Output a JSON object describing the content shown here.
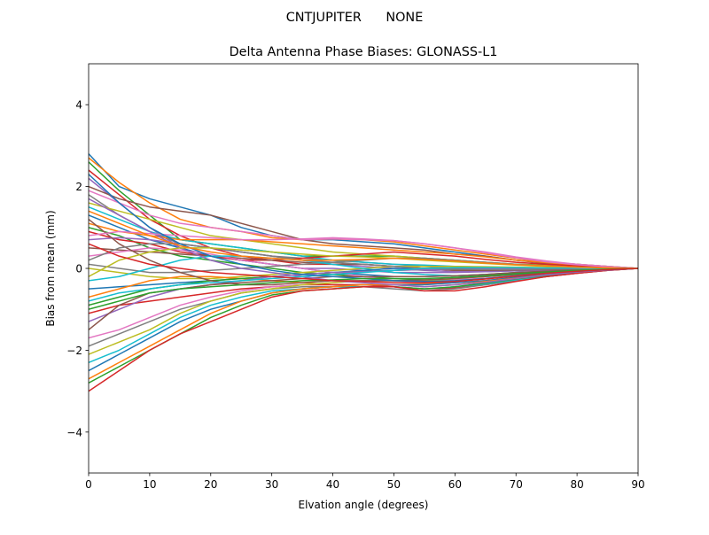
{
  "figure": {
    "suptitle": "CNTJUPITER      NONE"
  },
  "chart_data": {
    "type": "line",
    "title": "Delta Antenna Phase Biases: GLONASS-L1",
    "xlabel": "Elvation angle (degrees)",
    "ylabel": "Bias from mean (mm)",
    "xlim": [
      0,
      90
    ],
    "ylim": [
      -5,
      5
    ],
    "xticks": [
      0,
      10,
      20,
      30,
      40,
      50,
      60,
      70,
      80,
      90
    ],
    "yticks": [
      -4,
      -2,
      0,
      2,
      4
    ],
    "ytick_labels": [
      "−4",
      "−2",
      "0",
      "2",
      "4"
    ],
    "grid": false,
    "legend": "none",
    "x": [
      0,
      5,
      10,
      15,
      20,
      25,
      30,
      35,
      40,
      45,
      50,
      55,
      60,
      65,
      70,
      75,
      80,
      85,
      90
    ],
    "palette": [
      "#1f77b4",
      "#ff7f0e",
      "#2ca02c",
      "#d62728",
      "#9467bd",
      "#8c564b",
      "#e377c2",
      "#7f7f7f",
      "#bcbd22",
      "#17becf"
    ],
    "series": [
      {
        "values": [
          2.8,
          2.0,
          1.7,
          1.5,
          1.3,
          1.0,
          0.8,
          0.7,
          0.7,
          0.65,
          0.6,
          0.5,
          0.4,
          0.3,
          0.2,
          0.15,
          0.1,
          0.05,
          0.0
        ]
      },
      {
        "values": [
          2.7,
          2.1,
          1.6,
          1.2,
          1.0,
          0.9,
          0.75,
          0.7,
          0.72,
          0.7,
          0.65,
          0.55,
          0.45,
          0.35,
          0.25,
          0.15,
          0.1,
          0.05,
          0.0
        ]
      },
      {
        "values": [
          2.6,
          1.9,
          1.3,
          0.7,
          0.6,
          0.5,
          0.4,
          0.3,
          0.3,
          0.3,
          0.3,
          0.25,
          0.2,
          0.15,
          0.1,
          0.08,
          0.05,
          0.02,
          0.0
        ]
      },
      {
        "values": [
          2.4,
          1.8,
          1.2,
          0.8,
          0.5,
          0.3,
          0.2,
          0.1,
          0.1,
          0.1,
          0.05,
          0.0,
          -0.05,
          -0.05,
          -0.05,
          -0.03,
          -0.02,
          -0.01,
          0.0
        ]
      },
      {
        "values": [
          2.2,
          1.6,
          1.0,
          0.5,
          0.3,
          0.2,
          0.1,
          0.0,
          0.0,
          -0.05,
          -0.1,
          -0.1,
          -0.1,
          -0.08,
          -0.06,
          -0.04,
          -0.02,
          -0.01,
          0.0
        ]
      },
      {
        "values": [
          2.0,
          1.7,
          1.5,
          1.4,
          1.3,
          1.1,
          0.9,
          0.7,
          0.6,
          0.55,
          0.5,
          0.45,
          0.35,
          0.3,
          0.2,
          0.12,
          0.08,
          0.04,
          0.0
        ]
      },
      {
        "values": [
          1.9,
          1.6,
          1.3,
          1.1,
          1.0,
          0.9,
          0.8,
          0.7,
          0.72,
          0.7,
          0.68,
          0.6,
          0.5,
          0.4,
          0.28,
          0.18,
          0.1,
          0.05,
          0.0
        ]
      },
      {
        "values": [
          1.8,
          1.3,
          0.9,
          0.6,
          0.5,
          0.4,
          0.3,
          0.25,
          0.2,
          0.15,
          0.1,
          0.05,
          0.0,
          -0.02,
          -0.03,
          -0.02,
          -0.01,
          0.0,
          0.0
        ]
      },
      {
        "values": [
          1.6,
          1.4,
          1.2,
          1.0,
          0.8,
          0.7,
          0.6,
          0.5,
          0.4,
          0.35,
          0.3,
          0.25,
          0.2,
          0.15,
          0.1,
          0.07,
          0.05,
          0.02,
          0.0
        ]
      },
      {
        "values": [
          1.5,
          1.2,
          0.9,
          0.7,
          0.6,
          0.5,
          0.4,
          0.3,
          0.2,
          0.15,
          0.1,
          0.08,
          0.05,
          0.03,
          0.02,
          0.01,
          0.0,
          0.0,
          0.0
        ]
      },
      {
        "values": [
          1.3,
          1.0,
          0.7,
          0.5,
          0.3,
          0.2,
          0.1,
          0.0,
          -0.1,
          -0.15,
          -0.2,
          -0.2,
          -0.18,
          -0.15,
          -0.1,
          -0.07,
          -0.04,
          -0.02,
          0.0
        ]
      },
      {
        "values": [
          1.1,
          0.9,
          0.8,
          0.7,
          0.7,
          0.7,
          0.65,
          0.6,
          0.55,
          0.5,
          0.45,
          0.4,
          0.35,
          0.28,
          0.2,
          0.14,
          0.08,
          0.04,
          0.0
        ]
      },
      {
        "values": [
          1.0,
          0.8,
          0.5,
          0.3,
          0.2,
          0.1,
          0.0,
          -0.1,
          -0.15,
          -0.2,
          -0.25,
          -0.28,
          -0.28,
          -0.25,
          -0.18,
          -0.12,
          -0.07,
          -0.03,
          0.0
        ]
      },
      {
        "values": [
          0.9,
          0.7,
          0.6,
          0.4,
          0.3,
          0.2,
          0.2,
          0.25,
          0.3,
          0.35,
          0.4,
          0.35,
          0.3,
          0.22,
          0.15,
          0.1,
          0.06,
          0.03,
          0.0
        ]
      },
      {
        "values": [
          0.7,
          0.75,
          0.7,
          0.6,
          0.5,
          0.4,
          0.3,
          0.2,
          0.1,
          0.05,
          0.0,
          -0.05,
          -0.08,
          -0.08,
          -0.06,
          -0.04,
          -0.02,
          -0.01,
          0.0
        ]
      },
      {
        "values": [
          0.5,
          0.45,
          0.4,
          0.35,
          0.3,
          0.25,
          0.2,
          0.15,
          0.1,
          0.1,
          0.05,
          0.0,
          -0.05,
          -0.05,
          -0.04,
          -0.03,
          -0.02,
          -0.01,
          0.0
        ]
      },
      {
        "values": [
          0.3,
          0.4,
          0.5,
          0.45,
          0.35,
          0.2,
          0.1,
          0.0,
          -0.1,
          -0.2,
          -0.3,
          -0.35,
          -0.35,
          -0.3,
          -0.22,
          -0.14,
          -0.08,
          -0.03,
          0.0
        ]
      },
      {
        "values": [
          0.1,
          0.0,
          -0.1,
          -0.1,
          -0.05,
          0.0,
          0.05,
          0.1,
          0.15,
          0.2,
          0.25,
          0.25,
          0.2,
          0.15,
          0.1,
          0.06,
          0.03,
          0.01,
          0.0
        ]
      },
      {
        "values": [
          0.0,
          -0.1,
          -0.2,
          -0.25,
          -0.25,
          -0.2,
          -0.15,
          -0.1,
          -0.05,
          0.0,
          0.05,
          0.05,
          0.05,
          0.04,
          0.03,
          0.02,
          0.01,
          0.0,
          0.0
        ]
      },
      {
        "values": [
          -0.3,
          -0.2,
          0.0,
          0.2,
          0.3,
          0.3,
          0.25,
          0.2,
          0.1,
          0.0,
          -0.1,
          -0.15,
          -0.18,
          -0.15,
          -0.12,
          -0.08,
          -0.05,
          -0.02,
          0.0
        ]
      },
      {
        "values": [
          -0.5,
          -0.45,
          -0.4,
          -0.35,
          -0.3,
          -0.25,
          -0.2,
          -0.15,
          -0.1,
          -0.05,
          0.0,
          0.0,
          0.0,
          0.0,
          0.0,
          0.0,
          0.0,
          0.0,
          0.0
        ]
      },
      {
        "values": [
          -0.7,
          -0.5,
          -0.3,
          -0.2,
          -0.2,
          -0.25,
          -0.3,
          -0.35,
          -0.4,
          -0.4,
          -0.4,
          -0.38,
          -0.35,
          -0.3,
          -0.22,
          -0.14,
          -0.08,
          -0.03,
          0.0
        ]
      },
      {
        "values": [
          -0.9,
          -0.7,
          -0.5,
          -0.4,
          -0.3,
          -0.25,
          -0.2,
          -0.15,
          -0.1,
          -0.08,
          -0.05,
          -0.03,
          -0.02,
          -0.01,
          0.0,
          0.0,
          0.0,
          0.0,
          0.0
        ]
      },
      {
        "values": [
          -1.1,
          -0.9,
          -0.8,
          -0.7,
          -0.6,
          -0.5,
          -0.45,
          -0.4,
          -0.4,
          -0.4,
          -0.45,
          -0.5,
          -0.48,
          -0.4,
          -0.3,
          -0.2,
          -0.12,
          -0.05,
          0.0
        ]
      },
      {
        "values": [
          -1.3,
          -1.0,
          -0.7,
          -0.5,
          -0.4,
          -0.3,
          -0.2,
          -0.15,
          -0.1,
          -0.08,
          -0.05,
          -0.03,
          -0.02,
          -0.01,
          0.0,
          0.0,
          0.0,
          0.0,
          0.0
        ]
      },
      {
        "values": [
          -1.5,
          -0.9,
          -0.6,
          -0.5,
          -0.4,
          -0.35,
          -0.3,
          -0.25,
          -0.2,
          -0.2,
          -0.2,
          -0.2,
          -0.18,
          -0.15,
          -0.1,
          -0.07,
          -0.04,
          -0.02,
          0.0
        ]
      },
      {
        "values": [
          -1.7,
          -1.5,
          -1.2,
          -0.9,
          -0.7,
          -0.55,
          -0.45,
          -0.4,
          -0.35,
          -0.3,
          -0.3,
          -0.3,
          -0.28,
          -0.24,
          -0.18,
          -0.12,
          -0.07,
          -0.03,
          0.0
        ]
      },
      {
        "values": [
          -1.9,
          -1.6,
          -1.3,
          -1.0,
          -0.8,
          -0.6,
          -0.5,
          -0.45,
          -0.45,
          -0.45,
          -0.5,
          -0.55,
          -0.5,
          -0.4,
          -0.3,
          -0.2,
          -0.12,
          -0.05,
          0.0
        ]
      },
      {
        "values": [
          -2.1,
          -1.8,
          -1.5,
          -1.1,
          -0.8,
          -0.6,
          -0.5,
          -0.4,
          -0.35,
          -0.3,
          -0.3,
          -0.3,
          -0.25,
          -0.2,
          -0.15,
          -0.1,
          -0.06,
          -0.03,
          0.0
        ]
      },
      {
        "values": [
          -2.3,
          -2.0,
          -1.6,
          -1.2,
          -0.9,
          -0.7,
          -0.55,
          -0.5,
          -0.45,
          -0.45,
          -0.45,
          -0.5,
          -0.45,
          -0.38,
          -0.28,
          -0.18,
          -0.1,
          -0.04,
          0.0
        ]
      },
      {
        "values": [
          -2.5,
          -2.1,
          -1.7,
          -1.3,
          -1.0,
          -0.8,
          -0.6,
          -0.5,
          -0.45,
          -0.4,
          -0.4,
          -0.4,
          -0.35,
          -0.3,
          -0.22,
          -0.15,
          -0.08,
          -0.03,
          0.0
        ]
      },
      {
        "values": [
          -2.7,
          -2.3,
          -1.9,
          -1.5,
          -1.1,
          -0.8,
          -0.6,
          -0.5,
          -0.45,
          -0.4,
          -0.4,
          -0.45,
          -0.4,
          -0.32,
          -0.24,
          -0.16,
          -0.09,
          -0.04,
          0.0
        ]
      },
      {
        "values": [
          -2.8,
          -2.4,
          -2.0,
          -1.6,
          -1.2,
          -0.9,
          -0.65,
          -0.55,
          -0.5,
          -0.45,
          -0.45,
          -0.5,
          -0.45,
          -0.36,
          -0.26,
          -0.17,
          -0.1,
          -0.04,
          0.0
        ]
      },
      {
        "values": [
          -3.0,
          -2.5,
          -2.0,
          -1.6,
          -1.3,
          -1.0,
          -0.7,
          -0.55,
          -0.5,
          -0.45,
          -0.45,
          -0.55,
          -0.55,
          -0.45,
          -0.32,
          -0.2,
          -0.12,
          -0.05,
          0.0
        ]
      },
      {
        "values": [
          1.7,
          1.3,
          0.9,
          0.5,
          0.2,
          0.0,
          -0.1,
          -0.2,
          -0.3,
          -0.35,
          -0.4,
          -0.45,
          -0.4,
          -0.34,
          -0.25,
          -0.16,
          -0.09,
          -0.04,
          0.0
        ]
      },
      {
        "values": [
          1.2,
          0.6,
          0.2,
          -0.1,
          -0.3,
          -0.4,
          -0.4,
          -0.35,
          -0.3,
          -0.3,
          -0.3,
          -0.28,
          -0.25,
          -0.2,
          -0.15,
          -0.1,
          -0.06,
          -0.02,
          0.0
        ]
      },
      {
        "values": [
          0.8,
          0.9,
          0.85,
          0.8,
          0.75,
          0.7,
          0.7,
          0.72,
          0.75,
          0.72,
          0.68,
          0.6,
          0.5,
          0.38,
          0.26,
          0.16,
          0.09,
          0.04,
          0.0
        ]
      },
      {
        "values": [
          0.2,
          0.5,
          0.6,
          0.6,
          0.5,
          0.4,
          0.3,
          0.2,
          0.15,
          0.1,
          0.05,
          0.0,
          -0.02,
          -0.03,
          -0.03,
          -0.02,
          -0.01,
          0.0,
          0.0
        ]
      },
      {
        "values": [
          -0.2,
          0.2,
          0.4,
          0.5,
          0.5,
          0.45,
          0.4,
          0.35,
          0.3,
          0.28,
          0.25,
          0.2,
          0.16,
          0.12,
          0.08,
          0.05,
          0.03,
          0.01,
          0.0
        ]
      },
      {
        "values": [
          -0.8,
          -0.6,
          -0.5,
          -0.4,
          -0.35,
          -0.3,
          -0.25,
          -0.2,
          -0.15,
          -0.1,
          -0.05,
          0.0,
          0.02,
          0.02,
          0.02,
          0.01,
          0.01,
          0.0,
          0.0
        ]
      },
      {
        "values": [
          2.3,
          1.6,
          1.0,
          0.6,
          0.3,
          0.1,
          -0.05,
          -0.15,
          -0.2,
          -0.25,
          -0.3,
          -0.32,
          -0.3,
          -0.25,
          -0.18,
          -0.12,
          -0.07,
          -0.03,
          0.0
        ]
      },
      {
        "values": [
          1.4,
          1.1,
          0.8,
          0.55,
          0.4,
          0.3,
          0.25,
          0.2,
          0.2,
          0.22,
          0.25,
          0.22,
          0.18,
          0.13,
          0.09,
          0.06,
          0.03,
          0.01,
          0.0
        ]
      },
      {
        "values": [
          -1.0,
          -0.8,
          -0.6,
          -0.5,
          -0.45,
          -0.4,
          -0.35,
          -0.3,
          -0.28,
          -0.25,
          -0.25,
          -0.25,
          -0.22,
          -0.18,
          -0.13,
          -0.09,
          -0.05,
          -0.02,
          0.0
        ]
      },
      {
        "values": [
          0.6,
          0.3,
          0.1,
          0.0,
          -0.1,
          -0.15,
          -0.2,
          -0.25,
          -0.3,
          -0.32,
          -0.35,
          -0.35,
          -0.32,
          -0.26,
          -0.19,
          -0.12,
          -0.07,
          -0.03,
          0.0
        ]
      }
    ]
  }
}
